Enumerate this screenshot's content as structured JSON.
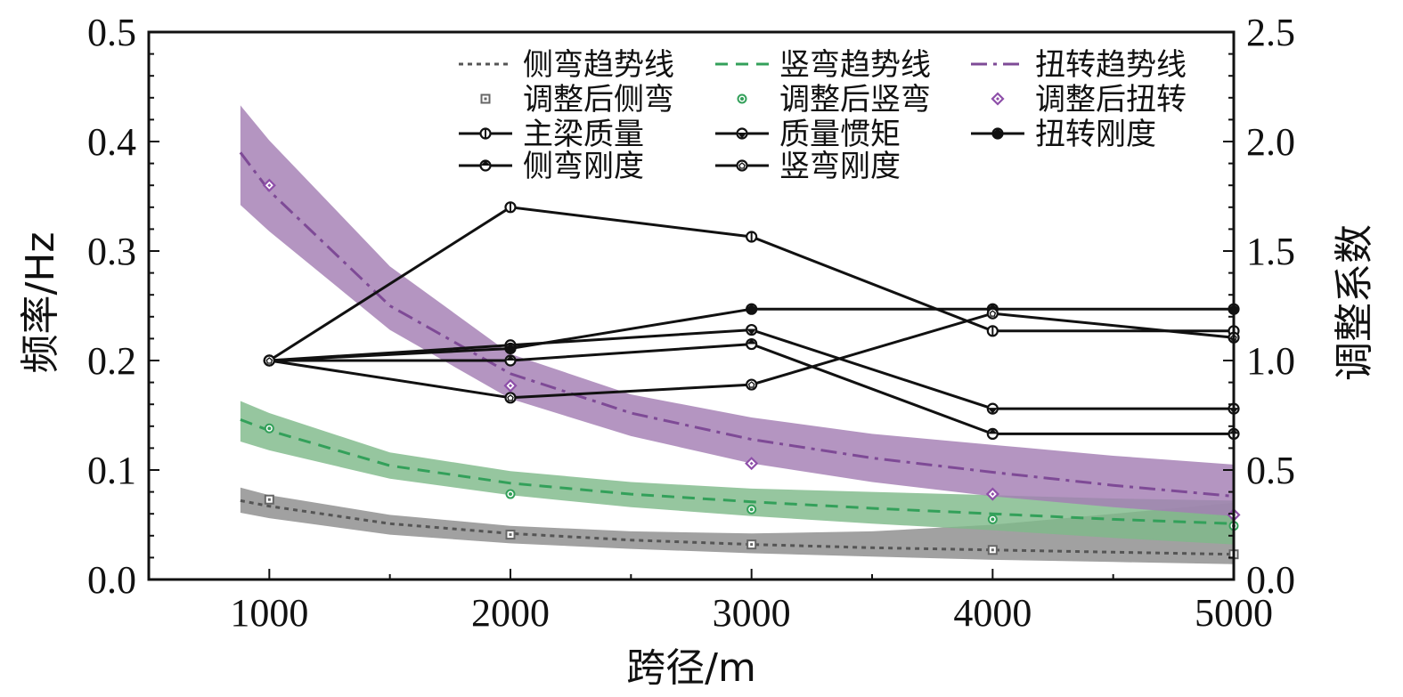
{
  "chart_data": {
    "type": "line",
    "xlabel": "跨径/m",
    "ylabel_left": "频率/Hz",
    "ylabel_right": "调整系数",
    "x_ticks": [
      1000,
      2000,
      3000,
      4000,
      5000
    ],
    "y_left_ticks": [
      "0.0",
      "0.1",
      "0.2",
      "0.3",
      "0.4",
      "0.5"
    ],
    "y_right_ticks": [
      "0.0",
      "0.5",
      "1.0",
      "1.5",
      "2.0",
      "2.5"
    ],
    "xlim": [
      500,
      5000
    ],
    "ylim_left": [
      0,
      0.5
    ],
    "ylim_right": [
      0,
      2.5
    ],
    "grid": false,
    "legend_position": "top",
    "bands": [
      {
        "name": "侧弯",
        "color": "#8c8c8c",
        "x": [
          880,
          1000,
          1500,
          2000,
          2500,
          3000,
          3500,
          4000,
          4500,
          5000
        ],
        "lower": [
          0.061,
          0.056,
          0.041,
          0.033,
          0.028,
          0.024,
          0.021,
          0.018,
          0.016,
          0.014
        ],
        "upper": [
          0.084,
          0.077,
          0.059,
          0.049,
          0.044,
          0.042,
          0.044,
          0.05,
          0.06,
          0.07
        ]
      },
      {
        "name": "竖弯",
        "color": "#7fb98a",
        "x": [
          880,
          1000,
          1500,
          2000,
          2500,
          3000,
          3500,
          4000,
          4500,
          5000
        ],
        "lower": [
          0.126,
          0.118,
          0.092,
          0.077,
          0.066,
          0.058,
          0.051,
          0.045,
          0.038,
          0.032
        ],
        "upper": [
          0.163,
          0.152,
          0.116,
          0.099,
          0.089,
          0.083,
          0.08,
          0.077,
          0.074,
          0.072
        ]
      },
      {
        "name": "扭转",
        "color": "#a47eb3",
        "x": [
          880,
          1000,
          1500,
          2000,
          2500,
          3000,
          3500,
          4000,
          4500,
          5000
        ],
        "lower": [
          0.342,
          0.318,
          0.228,
          0.165,
          0.131,
          0.106,
          0.089,
          0.076,
          0.066,
          0.058
        ],
        "upper": [
          0.433,
          0.401,
          0.286,
          0.206,
          0.169,
          0.148,
          0.133,
          0.123,
          0.113,
          0.105
        ]
      }
    ],
    "trend_lines": [
      {
        "name": "侧弯趋势线",
        "color": "#555555",
        "style": "dotted",
        "x": [
          880,
          1000,
          1500,
          2000,
          2500,
          3000,
          3500,
          4000,
          4500,
          5000
        ],
        "y": [
          0.072,
          0.067,
          0.051,
          0.042,
          0.036,
          0.032,
          0.029,
          0.027,
          0.025,
          0.023
        ]
      },
      {
        "name": "竖弯趋势线",
        "color": "#33a05a",
        "style": "dashed",
        "x": [
          880,
          1000,
          1500,
          2000,
          2500,
          3000,
          3500,
          4000,
          4500,
          5000
        ],
        "y": [
          0.146,
          0.136,
          0.104,
          0.088,
          0.078,
          0.071,
          0.065,
          0.06,
          0.055,
          0.051
        ]
      },
      {
        "name": "扭转趋势线",
        "color": "#7e4a96",
        "style": "dashdot",
        "x": [
          880,
          1000,
          1500,
          2000,
          2500,
          3000,
          3500,
          4000,
          4500,
          5000
        ],
        "y": [
          0.39,
          0.355,
          0.25,
          0.188,
          0.152,
          0.128,
          0.111,
          0.098,
          0.086,
          0.076
        ]
      }
    ],
    "scatter_series": [
      {
        "name": "调整后侧弯",
        "color": "#666666",
        "marker": "square",
        "x": [
          1000,
          2000,
          3000,
          4000,
          5000
        ],
        "y": [
          0.073,
          0.041,
          0.032,
          0.027,
          0.023
        ]
      },
      {
        "name": "调整后竖弯",
        "color": "#33a05a",
        "marker": "circle",
        "x": [
          1000,
          2000,
          3000,
          4000,
          5000
        ],
        "y": [
          0.138,
          0.078,
          0.064,
          0.055,
          0.049
        ]
      },
      {
        "name": "调整后扭转",
        "color": "#8e4fa9",
        "marker": "diamond",
        "x": [
          1000,
          2000,
          3000,
          4000,
          5000
        ],
        "y": [
          0.36,
          0.177,
          0.106,
          0.078,
          0.059
        ]
      }
    ],
    "coefficient_series": [
      {
        "name": "主梁质量",
        "marker": "vbar",
        "x": [
          1000,
          2000,
          3000,
          4000,
          5000
        ],
        "y": [
          1.0,
          1.7,
          1.565,
          1.135,
          1.135
        ]
      },
      {
        "name": "质量惯矩",
        "marker": "tri-down",
        "x": [
          1000,
          2000,
          3000,
          4000,
          5000
        ],
        "y": [
          1.0,
          1.07,
          1.14,
          0.78,
          0.78
        ]
      },
      {
        "name": "扭转刚度",
        "marker": "star",
        "x": [
          1000,
          2000,
          3000,
          4000,
          5000
        ],
        "y": [
          1.0,
          1.055,
          1.235,
          1.235,
          1.235
        ]
      },
      {
        "name": "侧弯刚度",
        "marker": "pentagon",
        "x": [
          1000,
          2000,
          3000,
          4000,
          5000
        ],
        "y": [
          1.0,
          1.0,
          1.075,
          0.665,
          0.665
        ]
      },
      {
        "name": "竖弯刚度",
        "marker": "pentagon-open",
        "x": [
          1000,
          2000,
          3000,
          4000,
          5000
        ],
        "y": [
          1.0,
          0.83,
          0.89,
          1.215,
          1.105
        ]
      }
    ]
  }
}
